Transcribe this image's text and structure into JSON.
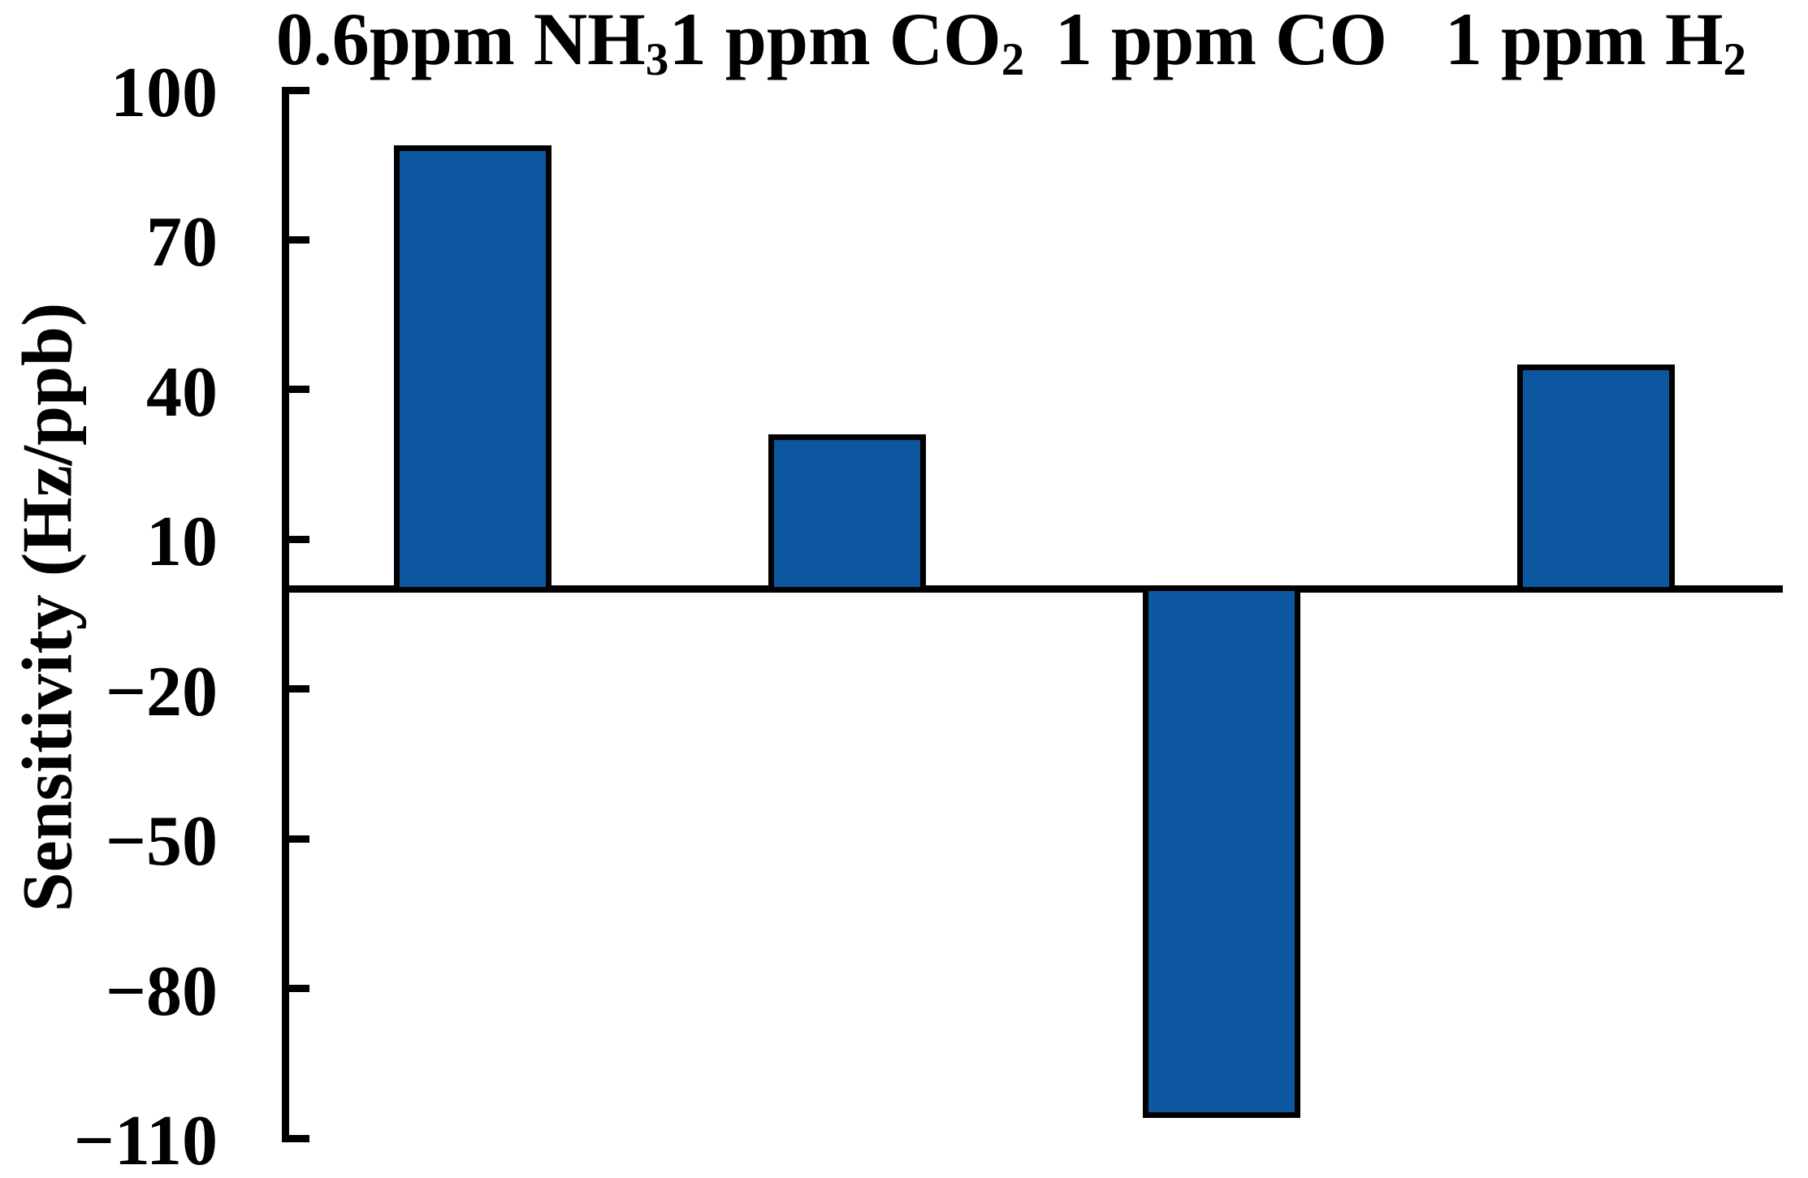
{
  "chart_data": {
    "type": "bar",
    "title": "",
    "xlabel": "",
    "ylabel": "Sensitivity (Hz/ppb)",
    "categories": [
      "0.6ppm NH₃",
      "1 ppm CO₂",
      "1 ppm CO",
      "1 ppm H₂"
    ],
    "values": [
      89,
      31,
      -106,
      45
    ],
    "ylim": [
      -110,
      100
    ],
    "yticks": [
      100,
      70,
      40,
      10,
      -20,
      -50,
      -80,
      -110
    ],
    "ytick_labels": [
      "100",
      "70",
      "40",
      "10",
      "−20",
      "−50",
      "−80",
      "−110"
    ],
    "grid": false,
    "legend": null,
    "bar_color": "#0d56a0",
    "bar_border_color": "#000000",
    "axis_color": "#000000",
    "text_color": "#000000",
    "background_color": "#ffffff"
  }
}
